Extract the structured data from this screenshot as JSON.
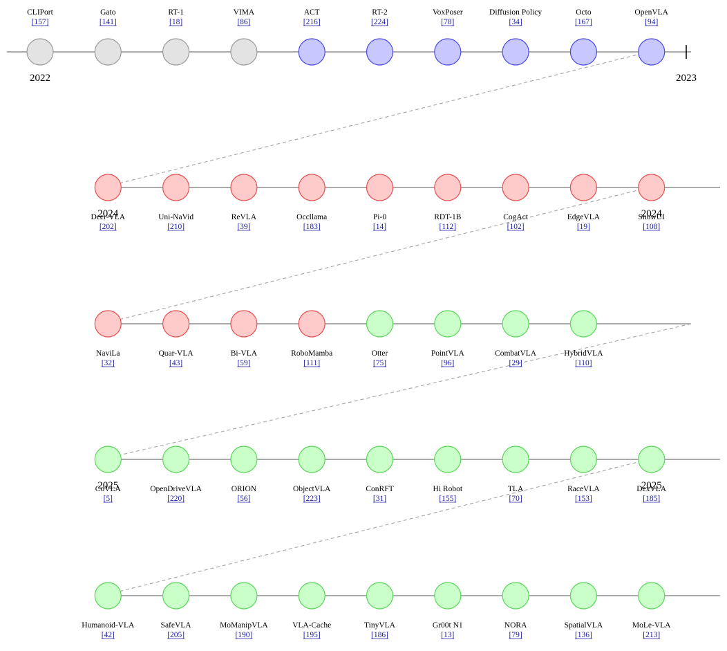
{
  "colors": {
    "gray": {
      "fill": "#e3e3e3",
      "stroke": "#9a9a9a"
    },
    "blue": {
      "fill": "#c8c8ff",
      "stroke": "#4a4ae6"
    },
    "red": {
      "fill": "#ffcaca",
      "stroke": "#e65050"
    },
    "green": {
      "fill": "#caffca",
      "stroke": "#5ad65a"
    },
    "line": "#777777",
    "connector": "#aaaaaa",
    "ref": "#1a1aa6"
  },
  "rows": [
    {
      "label_position": "above",
      "years": [
        {
          "text": "2022",
          "at_node": 0
        },
        {
          "text": "2023",
          "at_tick": true
        }
      ],
      "nodes": [
        {
          "name": "CLIPort",
          "ref": "[157]",
          "color": "gray"
        },
        {
          "name": "Gato",
          "ref": "[141]",
          "color": "gray"
        },
        {
          "name": "RT-1",
          "ref": "[18]",
          "color": "gray"
        },
        {
          "name": "VIMA",
          "ref": "[86]",
          "color": "gray"
        },
        {
          "name": "ACT",
          "ref": "[216]",
          "color": "blue"
        },
        {
          "name": "RT-2",
          "ref": "[224]",
          "color": "blue"
        },
        {
          "name": "VoxPoser",
          "ref": "[78]",
          "color": "blue"
        },
        {
          "name": "Diffusion Policy",
          "ref": "[34]",
          "color": "blue"
        },
        {
          "name": "Octo",
          "ref": "[167]",
          "color": "blue"
        },
        {
          "name": "OpenVLA",
          "ref": "[94]",
          "color": "blue"
        }
      ]
    },
    {
      "label_position": "below",
      "years": [
        {
          "text": "2024",
          "at_node": 0
        },
        {
          "text": "2024",
          "at_node": 8
        }
      ],
      "nodes": [
        {
          "name": "Deer-VLA",
          "ref": "[202]",
          "color": "red"
        },
        {
          "name": "Uni-NaVid",
          "ref": "[210]",
          "color": "red"
        },
        {
          "name": "ReVLA",
          "ref": "[39]",
          "color": "red"
        },
        {
          "name": "Occllama",
          "ref": "[183]",
          "color": "red"
        },
        {
          "name": "Pi-0",
          "ref": "[14]",
          "color": "red"
        },
        {
          "name": "RDT-1B",
          "ref": "[112]",
          "color": "red"
        },
        {
          "name": "CogAct",
          "ref": "[102]",
          "color": "red"
        },
        {
          "name": "EdgeVLA",
          "ref": "[19]",
          "color": "red"
        },
        {
          "name": "ShowUI",
          "ref": "[108]",
          "color": "red"
        }
      ]
    },
    {
      "label_position": "below",
      "years": [],
      "nodes": [
        {
          "name": "NaviLa",
          "ref": "[32]",
          "color": "red"
        },
        {
          "name": "Quar-VLA",
          "ref": "[43]",
          "color": "red"
        },
        {
          "name": "Bi-VLA",
          "ref": "[59]",
          "color": "red"
        },
        {
          "name": "RoboMamba",
          "ref": "[111]",
          "color": "red"
        },
        {
          "name": "Otter",
          "ref": "[75]",
          "color": "green"
        },
        {
          "name": "PointVLA",
          "ref": "[96]",
          "color": "green"
        },
        {
          "name": "CombatVLA",
          "ref": "[29]",
          "color": "green"
        },
        {
          "name": "HybridVLA",
          "ref": "[110]",
          "color": "green"
        }
      ]
    },
    {
      "label_position": "below",
      "years": [
        {
          "text": "2025",
          "at_node": 0
        },
        {
          "text": "2025",
          "at_node": 8
        }
      ],
      "nodes": [
        {
          "name": "CoVLA",
          "ref": "[5]",
          "color": "green"
        },
        {
          "name": "OpenDriveVLA",
          "ref": "[220]",
          "color": "green"
        },
        {
          "name": "ORION",
          "ref": "[56]",
          "color": "green"
        },
        {
          "name": "ObjectVLA",
          "ref": "[223]",
          "color": "green"
        },
        {
          "name": "ConRFT",
          "ref": "[31]",
          "color": "green"
        },
        {
          "name": "Hi Robot",
          "ref": "[155]",
          "color": "green"
        },
        {
          "name": "TLA",
          "ref": "[70]",
          "color": "green"
        },
        {
          "name": "RaceVLA",
          "ref": "[153]",
          "color": "green"
        },
        {
          "name": "DexVLA",
          "ref": "[185]",
          "color": "green"
        }
      ]
    },
    {
      "label_position": "below",
      "years": [],
      "nodes": [
        {
          "name": "Humanoid-VLA",
          "ref": "[42]",
          "color": "green"
        },
        {
          "name": "SafeVLA",
          "ref": "[205]",
          "color": "green"
        },
        {
          "name": "MoManipVLA",
          "ref": "[190]",
          "color": "green"
        },
        {
          "name": "VLA-Cache",
          "ref": "[195]",
          "color": "green"
        },
        {
          "name": "TinyVLA",
          "ref": "[186]",
          "color": "green"
        },
        {
          "name": "Gr00t N1",
          "ref": "[13]",
          "color": "green"
        },
        {
          "name": "NORA",
          "ref": "[79]",
          "color": "green"
        },
        {
          "name": "SpatialVLA",
          "ref": "[136]",
          "color": "green"
        },
        {
          "name": "MoLe-VLA",
          "ref": "[213]",
          "color": "green"
        }
      ]
    }
  ]
}
